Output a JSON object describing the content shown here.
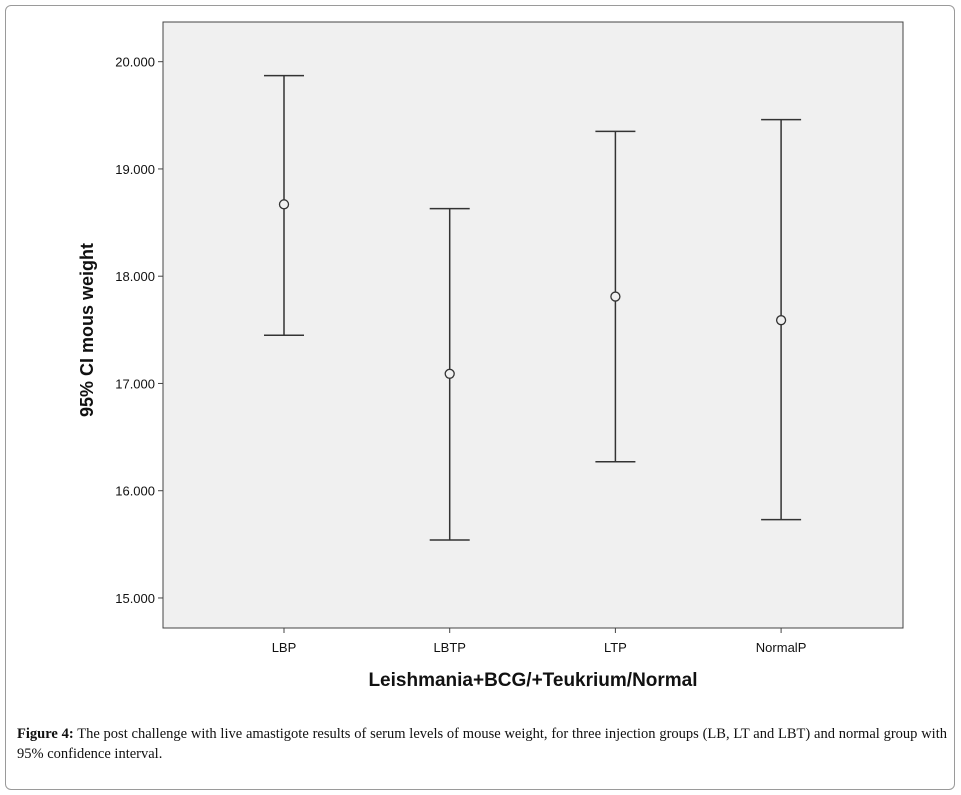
{
  "chart_data": {
    "type": "errorbar",
    "categories": [
      "LBP",
      "LBTP",
      "LTP",
      "NormalP"
    ],
    "series": [
      {
        "name": "mean",
        "values": [
          18.67,
          17.09,
          17.81,
          17.59
        ]
      },
      {
        "name": "upper_95ci",
        "values": [
          19.87,
          18.63,
          19.35,
          19.46
        ]
      },
      {
        "name": "lower_95ci",
        "values": [
          17.45,
          15.54,
          16.27,
          15.73
        ]
      }
    ],
    "xlabel": "Leishmania+BCG/+Teukrium/Normal",
    "ylabel": "95% CI mous weight",
    "yticks": [
      "15.000",
      "16.000",
      "17.000",
      "18.000",
      "19.000",
      "20.000"
    ],
    "ytick_values": [
      15,
      16,
      17,
      18,
      19,
      20
    ],
    "ylim": [
      14.72,
      20.37
    ],
    "grid": false,
    "colors": {
      "plot_bg": "#f0f0f0",
      "line": "#333333"
    }
  },
  "caption": {
    "label": "Figure 4:",
    "text": " The post challenge with live amastigote results of serum levels of mouse weight, for three injection groups (LB, LT and LBT) and normal group with 95% confidence interval."
  }
}
